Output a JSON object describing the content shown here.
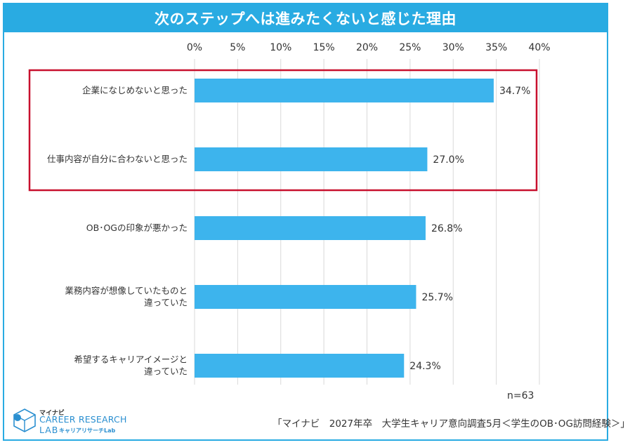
{
  "title": "次のステップへは進みたくないと感じた理由",
  "note": "n=63",
  "source": "「マイナビ　2027年卒　大学生キャリア意向調査5月＜学生のOB･OG訪問経験＞」",
  "logo": {
    "brand": "マイナビ",
    "name": "CAREER RESEARCH",
    "lab": "LAB",
    "sub": "キャリアリサーチLab",
    "icon": "cube-logo-icon"
  },
  "colors": {
    "bar": "#3DB4ED",
    "title_bg": "#29ABE2",
    "highlight": "#C8102E",
    "grid": "#d9d9d9"
  },
  "chart_data": {
    "type": "bar",
    "orientation": "horizontal",
    "title": "次のステップへは進みたくないと感じた理由",
    "xlim": [
      0,
      40
    ],
    "ticks": [
      "0%",
      "5%",
      "10%",
      "15%",
      "20%",
      "25%",
      "30%",
      "35%",
      "40%"
    ],
    "tick_values": [
      0,
      5,
      10,
      15,
      20,
      25,
      30,
      35,
      40
    ],
    "grid": true,
    "categories": [
      [
        "企業になじめないと思った"
      ],
      [
        "仕事内容が自分に合わないと思った"
      ],
      [
        "OB･OGの印象が悪かった"
      ],
      [
        "業務内容が想像していたものと",
        "違っていた"
      ],
      [
        "希望するキャリアイメージと",
        "違っていた"
      ]
    ],
    "values": [
      34.7,
      27.0,
      26.8,
      25.7,
      24.3
    ],
    "value_labels": [
      "34.7%",
      "27.0%",
      "26.8%",
      "25.7%",
      "24.3%"
    ],
    "highlighted_categories": [
      0,
      1
    ]
  }
}
